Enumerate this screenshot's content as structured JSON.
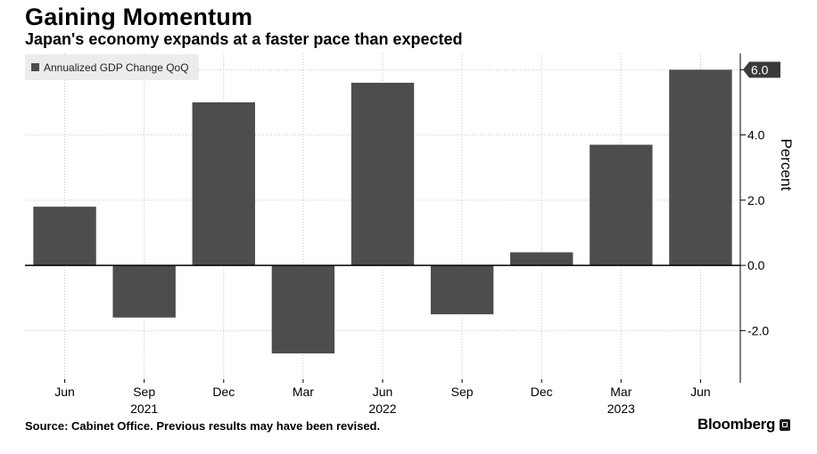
{
  "title": "Gaining Momentum",
  "subtitle": "Japan's economy expands at a faster pace than expected",
  "source": "Source: Cabinet Office. Previous results may have been revised.",
  "brand": "Bloomberg",
  "chart_data": {
    "type": "bar",
    "categories": [
      "Jun",
      "Sep",
      "Dec",
      "Mar",
      "Jun",
      "Sep",
      "Dec",
      "Mar",
      "Jun"
    ],
    "year_labels": [
      {
        "under": 1,
        "label": "2021"
      },
      {
        "under": 4,
        "label": "2022"
      },
      {
        "under": 7,
        "label": "2023"
      }
    ],
    "series": [
      {
        "name": "Annualized GDP Change QoQ",
        "values": [
          1.8,
          -1.6,
          5.0,
          -2.7,
          5.6,
          -1.5,
          0.4,
          3.7,
          6.0
        ],
        "color": "#4d4d4d"
      }
    ],
    "ylabel": "Percent",
    "ylim": [
      -3.6,
      6.5
    ],
    "yticks": [
      "-2.0",
      "0.0",
      "2.0",
      "4.0",
      "6.0"
    ],
    "last_value_label": "6.0",
    "legend_position": "top-left",
    "grid": true
  }
}
